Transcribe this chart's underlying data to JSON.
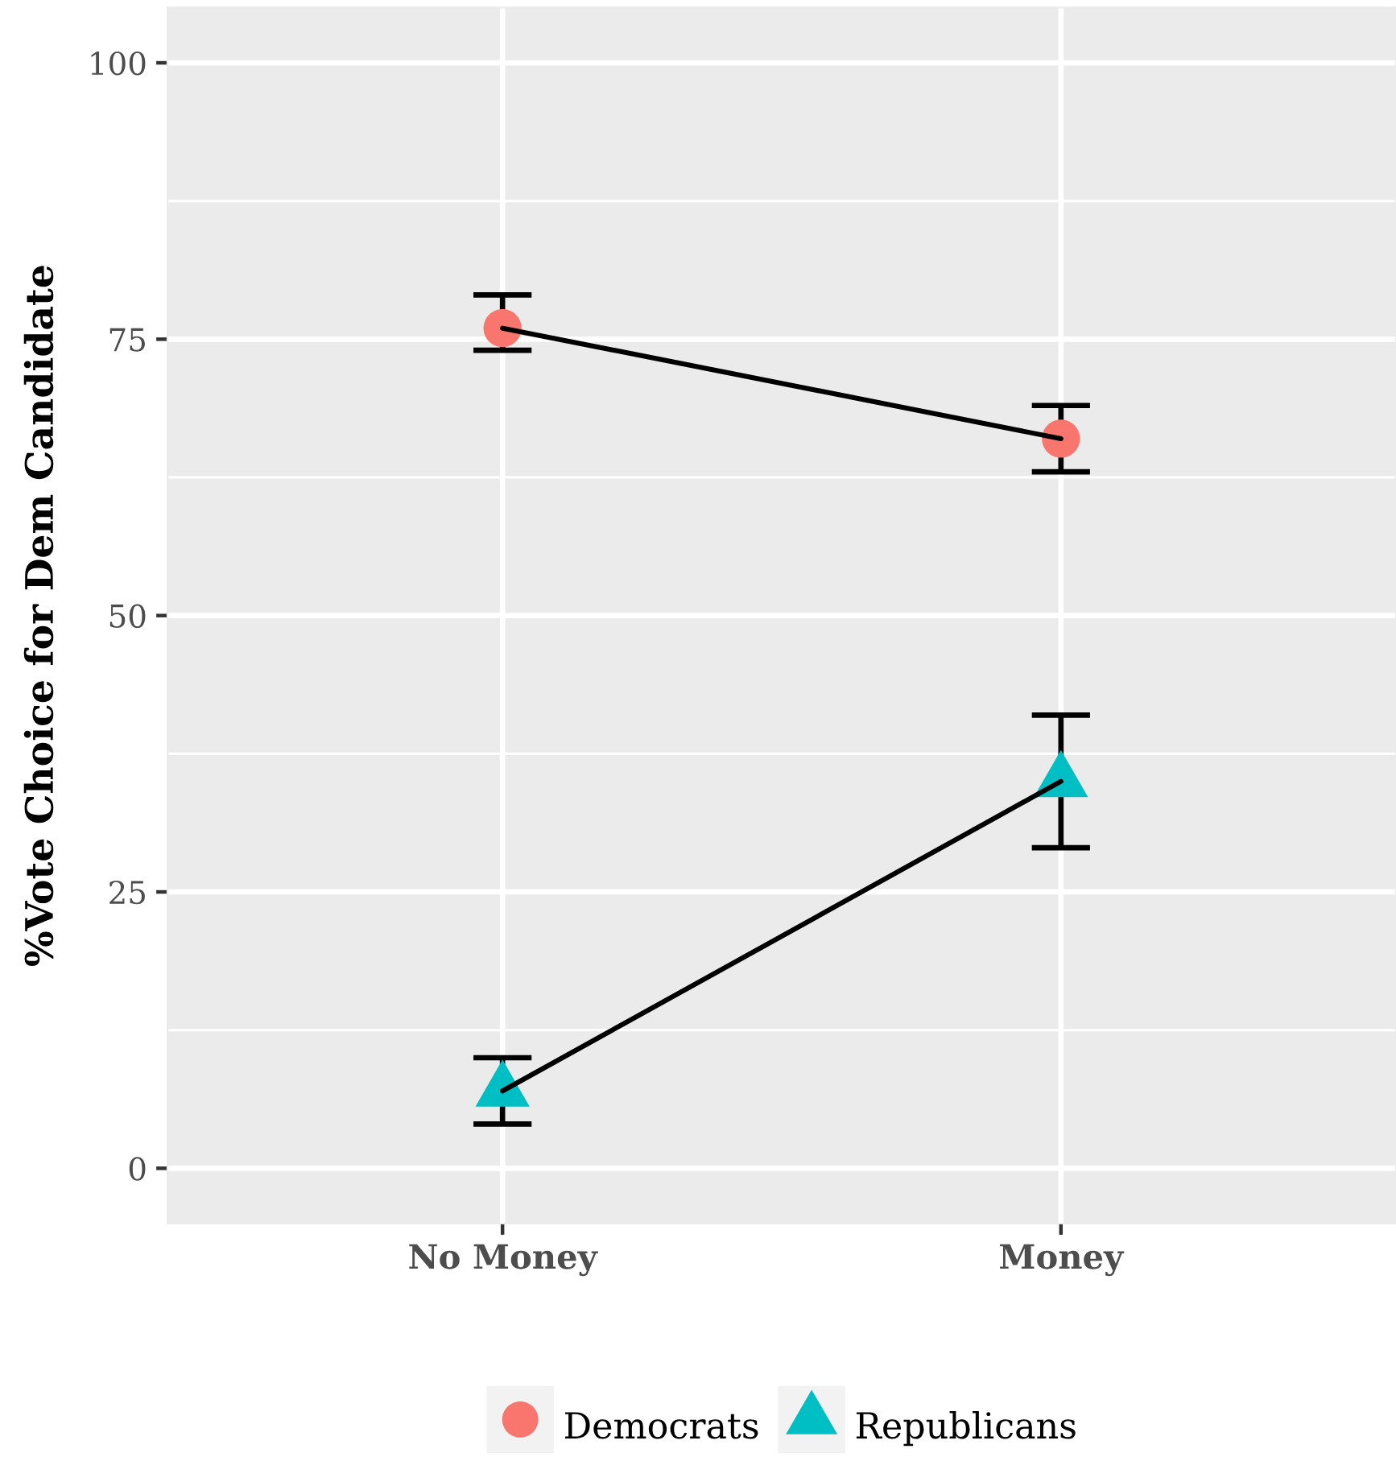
{
  "chart_data": {
    "type": "line",
    "ylabel": "%Vote Choice for Dem Candidate",
    "categories": [
      "No Money",
      "Money"
    ],
    "series": [
      {
        "name": "Democrats",
        "color": "#f8766d",
        "marker": "circle",
        "values": [
          76,
          66
        ],
        "errors": [
          [
            74,
            79
          ],
          [
            63,
            69
          ]
        ]
      },
      {
        "name": "Republicans",
        "color": "#00bfc4",
        "marker": "triangle",
        "values": [
          7,
          35
        ],
        "errors": [
          [
            4,
            10
          ],
          [
            29,
            41
          ]
        ]
      }
    ],
    "ylim": [
      -5,
      105
    ],
    "yticks": [
      0,
      25,
      50,
      75,
      100
    ],
    "grid": true,
    "legend": "bottom"
  }
}
